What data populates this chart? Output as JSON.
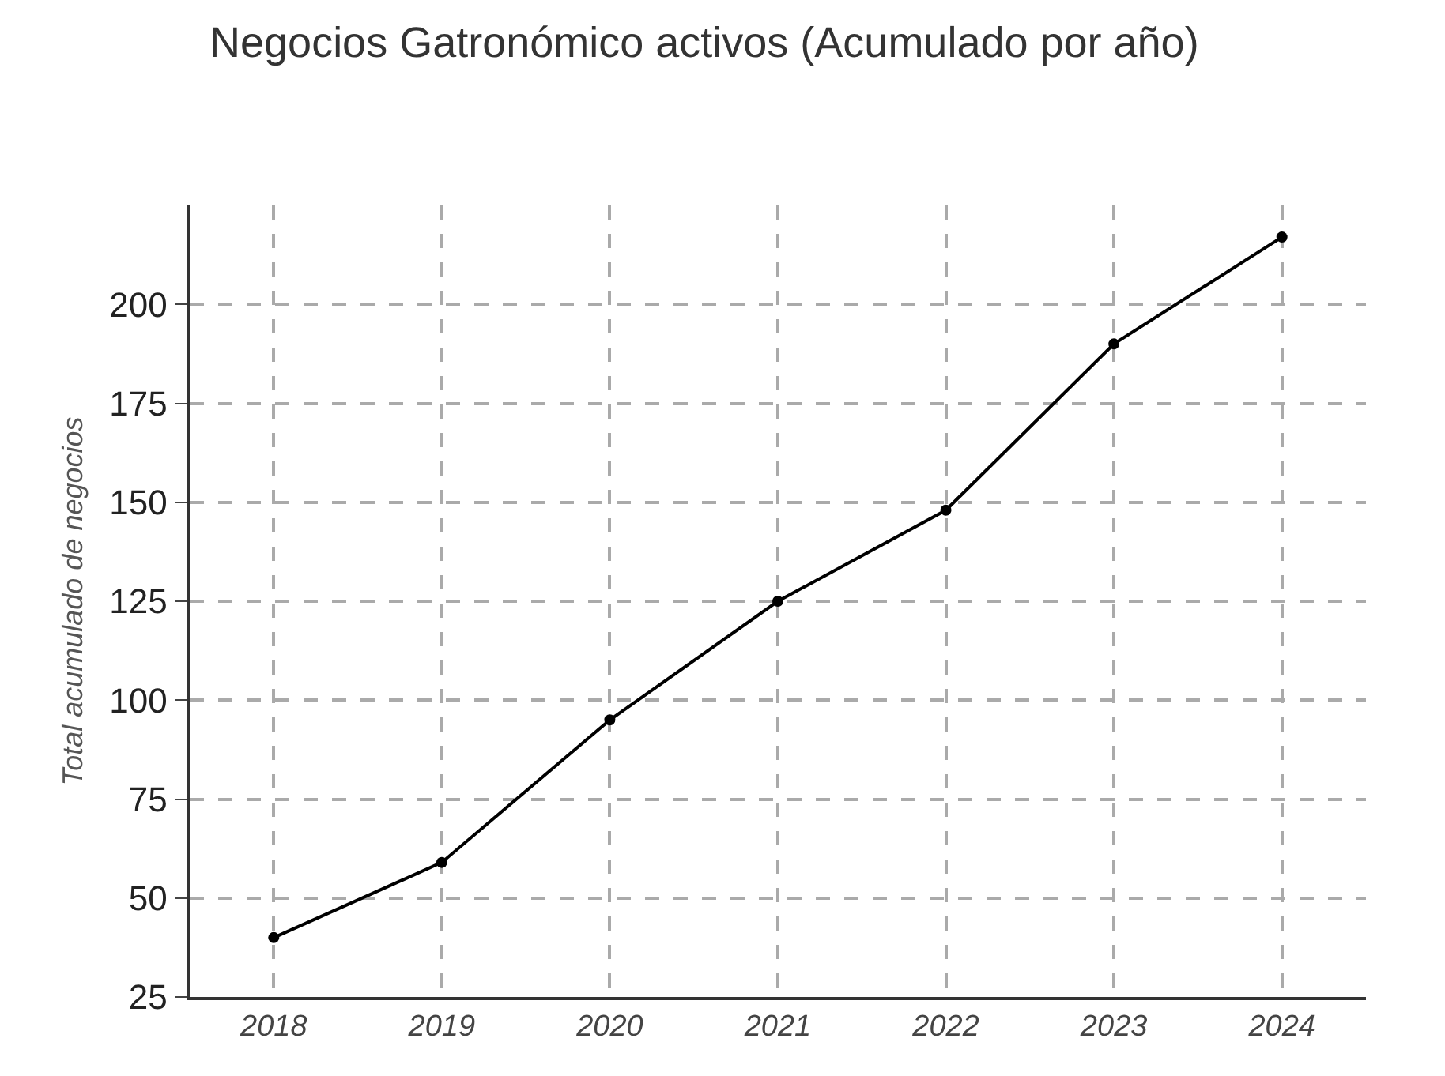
{
  "chart_data": {
    "type": "line",
    "title": "Negocios Gatronómico activos (Acumulado por año)",
    "ylabel": "Total acumulado de negocios",
    "categories": [
      "2018",
      "2019",
      "2020",
      "2021",
      "2022",
      "2023",
      "2024"
    ],
    "series": [
      {
        "color": "#000000",
        "values": [
          40,
          59,
          95,
          125,
          148,
          190,
          217
        ]
      }
    ],
    "ylim": [
      25,
      225
    ],
    "yticks": [
      25,
      50,
      75,
      100,
      125,
      150,
      175,
      200
    ],
    "grid": true,
    "marker": "circle",
    "line_style": "solid"
  }
}
